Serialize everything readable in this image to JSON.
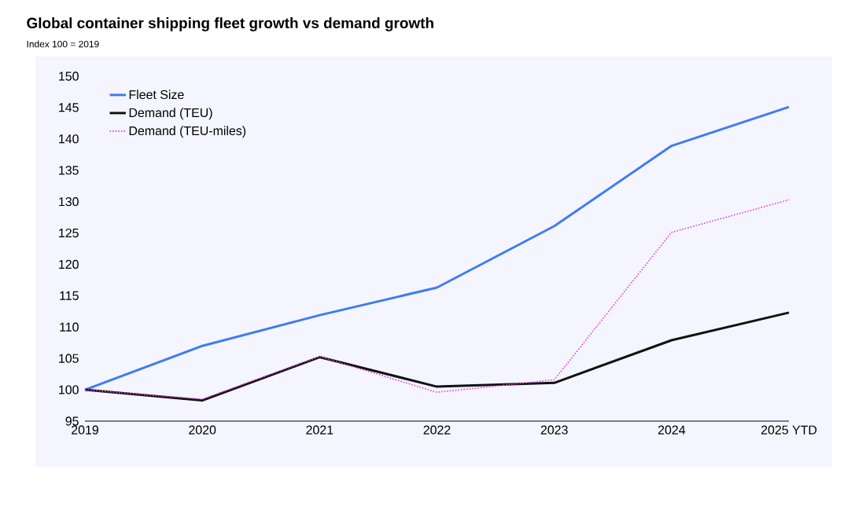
{
  "chart_data": {
    "type": "line",
    "title": "Global container shipping fleet growth vs demand growth",
    "subtitle": "Index 100 = 2019",
    "categories": [
      "2019",
      "2020",
      "2021",
      "2022",
      "2023",
      "2024",
      "2025 YTD"
    ],
    "series": [
      {
        "name": "Fleet Size",
        "color": "#3d7cf5",
        "line_style": "solid",
        "values": [
          100,
          107,
          111.9,
          116.3,
          126.1,
          138.9,
          145.1
        ]
      },
      {
        "name": "Demand (TEU)",
        "color": "#111111",
        "line_style": "solid",
        "values": [
          100,
          98.3,
          105.2,
          100.5,
          101.1,
          107.9,
          112.3
        ]
      },
      {
        "name": "Demand (TEU-miles)",
        "color": "#d93fe6",
        "line_style": "dotted",
        "values": [
          100,
          98.5,
          105.3,
          99.6,
          101.6,
          125.1,
          130.3
        ]
      }
    ],
    "ylim": [
      95,
      150
    ],
    "yticks": [
      95,
      100,
      105,
      110,
      115,
      120,
      125,
      130,
      135,
      140,
      145,
      150
    ],
    "grid": false,
    "legend": "top left",
    "marker": "none"
  }
}
